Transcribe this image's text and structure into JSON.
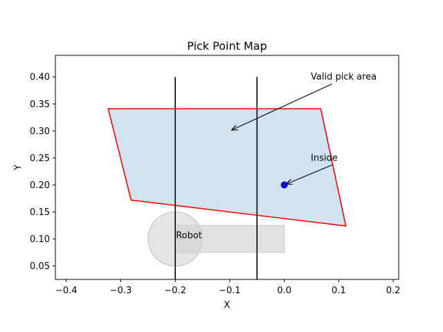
{
  "chart_data": {
    "type": "scatter",
    "title": "Pick Point Map",
    "xlabel": "X",
    "ylabel": "Y",
    "xlim": [
      -0.42,
      0.21
    ],
    "ylim": [
      0.025,
      0.44
    ],
    "xticks": [
      -0.4,
      -0.3,
      -0.2,
      -0.1,
      0.0,
      0.1,
      0.2
    ],
    "xtick_labels": [
      "−0.4",
      "−0.3",
      "−0.2",
      "−0.1",
      "0.0",
      "0.1",
      "0.2"
    ],
    "yticks": [
      0.05,
      0.1,
      0.15,
      0.2,
      0.25,
      0.3,
      0.35,
      0.4
    ],
    "ytick_labels": [
      "0.05",
      "0.10",
      "0.15",
      "0.20",
      "0.25",
      "0.30",
      "0.35",
      "0.40"
    ],
    "grid": false,
    "valid_area": {
      "polygon": [
        [
          -0.323,
          0.341
        ],
        [
          0.067,
          0.341
        ],
        [
          0.113,
          0.124
        ],
        [
          -0.281,
          0.172
        ]
      ],
      "fill_color": "#d1e3f0",
      "edge_color": "#ff0000"
    },
    "vertical_lines": [
      {
        "x": -0.2,
        "y_range": [
          0.025,
          0.4
        ],
        "color": "#000000"
      },
      {
        "x": -0.05,
        "y_range": [
          0.025,
          0.4
        ],
        "color": "#000000"
      }
    ],
    "robot": {
      "label": "Robot",
      "circle": {
        "cx": -0.2,
        "cy": 0.1,
        "r": 0.05
      },
      "rect": {
        "x0": -0.2,
        "x1": 0.0,
        "y0": 0.075,
        "y1": 0.125
      },
      "color": "#d3d3d3"
    },
    "points": [
      {
        "x": 0.0,
        "y": 0.2,
        "color": "#0000ff"
      }
    ],
    "annotations": [
      {
        "text": "Valid pick area",
        "text_xy": [
          0.05,
          0.4
        ],
        "arrow_to": [
          -0.1,
          0.3
        ]
      },
      {
        "text": "Inside",
        "text_xy": [
          0.05,
          0.25
        ],
        "arrow_to": [
          0.0,
          0.2
        ]
      }
    ]
  }
}
